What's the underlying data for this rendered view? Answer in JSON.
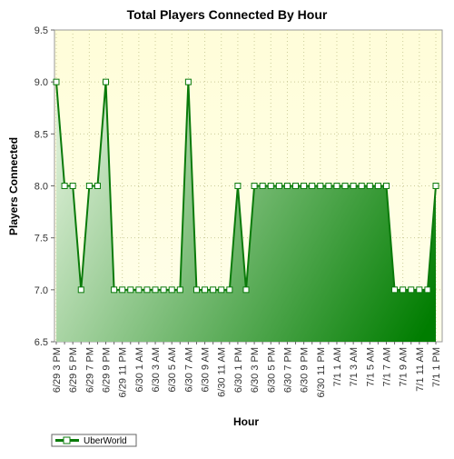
{
  "chart_data": {
    "type": "area",
    "title": "Total Players Connected By Hour",
    "xlabel": "Hour",
    "ylabel": "Players Connected",
    "ylim": [
      6.5,
      9.5
    ],
    "yticks": [
      6.5,
      7.0,
      7.5,
      8.0,
      8.5,
      9.0,
      9.5
    ],
    "x": [
      "6/29 3 PM",
      "",
      "6/29 5 PM",
      "",
      "6/29 7 PM",
      "",
      "6/29 9 PM",
      "",
      "6/29 11 PM",
      "",
      "6/30 1 AM",
      "",
      "6/30 3 AM",
      "",
      "6/30 5 AM",
      "",
      "6/30 7 AM",
      "",
      "6/30 9 AM",
      "",
      "6/30 11 AM",
      "",
      "6/30 1 PM",
      "",
      "6/30 3 PM",
      "",
      "6/30 5 PM",
      "",
      "6/30 7 PM",
      "",
      "6/30 9 PM",
      "",
      "6/30 11 PM",
      "",
      "7/1 1 AM",
      "",
      "7/1 3 AM",
      "",
      "7/1 5 AM",
      "",
      "7/1 7 AM",
      "",
      "7/1 9 AM",
      "",
      "7/1 11 AM",
      "",
      "7/1 1 PM"
    ],
    "series": [
      {
        "name": "UberWorld",
        "values": [
          9,
          8,
          8,
          7,
          8,
          8,
          9,
          7,
          7,
          7,
          7,
          7,
          7,
          7,
          7,
          7,
          9,
          7,
          7,
          7,
          7,
          7,
          8,
          7,
          8,
          8,
          8,
          8,
          8,
          8,
          8,
          8,
          8,
          8,
          8,
          8,
          8,
          8,
          8,
          8,
          8,
          7,
          7,
          7,
          7,
          7,
          8
        ]
      }
    ],
    "grid": true,
    "legend": "bottom-left"
  },
  "colors": {
    "line": "#0a7a0a",
    "area_light": "#d7ecd1",
    "area_dark": "#007d00",
    "plot_bg_top": "#fffdd9",
    "plot_bg_bottom": "#ffffea"
  }
}
